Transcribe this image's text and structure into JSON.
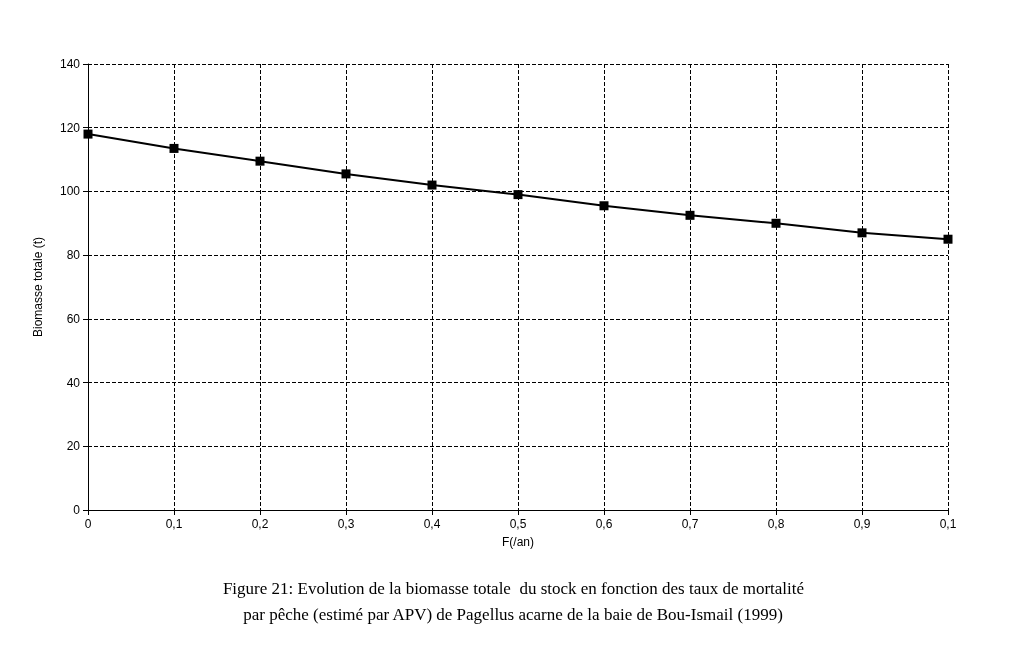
{
  "chart_data": {
    "type": "line",
    "xlabel": "F(/an)",
    "ylabel": "Biomasse totale (t)",
    "categories": [
      "0",
      "0,1",
      "0,2",
      "0,3",
      "0,4",
      "0,5",
      "0,6",
      "0,7",
      "0,8",
      "0,9",
      "0,1"
    ],
    "series": [
      {
        "color": "#000000",
        "values": [
          118,
          113.5,
          109.5,
          105.5,
          102,
          99,
          95.5,
          92.5,
          90,
          87,
          85
        ]
      }
    ],
    "ylim": [
      0,
      140
    ],
    "yticks": [
      0,
      20,
      40,
      60,
      80,
      100,
      120,
      140
    ],
    "grid": true,
    "marker": "square",
    "line_style": "solid",
    "annotations": [
      "Figure 21: Evolution de la biomasse totale  du stock en fonction des taux de mortalité",
      "par pêche (estimé par APV) de Pagellus acarne de la baie de Bou-Ismail (1999)"
    ]
  }
}
